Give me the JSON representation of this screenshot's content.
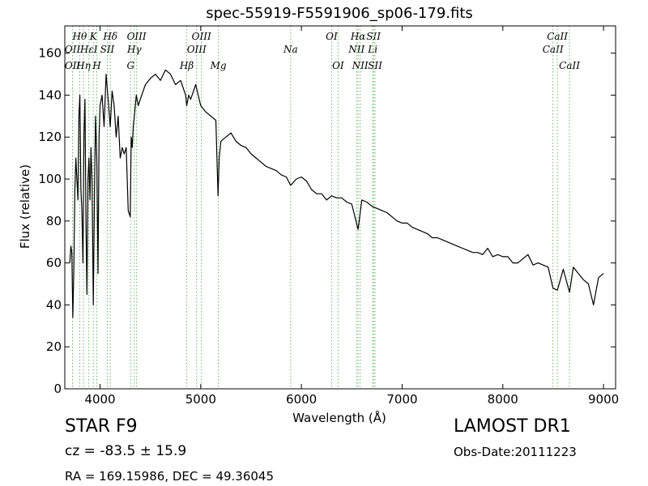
{
  "chart_data": {
    "type": "line",
    "title": "spec-55919-F5591906_sp06-179.fits",
    "xlabel": "Wavelength (Å)",
    "ylabel": "Flux (relative)",
    "xlim": [
      3650,
      9120
    ],
    "ylim": [
      0,
      173
    ],
    "x_ticks": [
      4000,
      5000,
      6000,
      7000,
      8000,
      9000
    ],
    "y_ticks": [
      0,
      20,
      40,
      60,
      80,
      100,
      120,
      140,
      160
    ],
    "grid": false,
    "line_color": "#000000",
    "marker_color": "#6ab86a",
    "spectrum": {
      "x": [
        3700,
        3710,
        3720,
        3730,
        3740,
        3750,
        3760,
        3770,
        3780,
        3790,
        3800,
        3810,
        3820,
        3830,
        3840,
        3850,
        3860,
        3870,
        3880,
        3890,
        3900,
        3910,
        3920,
        3933,
        3945,
        3955,
        3968,
        3980,
        3990,
        4000,
        4020,
        4040,
        4060,
        4080,
        4101,
        4120,
        4140,
        4160,
        4180,
        4200,
        4220,
        4240,
        4260,
        4280,
        4300,
        4310,
        4320,
        4330,
        4340,
        4360,
        4380,
        4400,
        4450,
        4500,
        4550,
        4600,
        4650,
        4700,
        4750,
        4800,
        4850,
        4861,
        4880,
        4900,
        4950,
        5000,
        5050,
        5100,
        5150,
        5172,
        5183,
        5200,
        5250,
        5300,
        5350,
        5400,
        5450,
        5500,
        5550,
        5600,
        5650,
        5700,
        5750,
        5800,
        5850,
        5893,
        5950,
        6000,
        6050,
        6100,
        6150,
        6200,
        6250,
        6300,
        6350,
        6400,
        6450,
        6500,
        6563,
        6600,
        6650,
        6700,
        6750,
        6800,
        6850,
        6900,
        6950,
        7000,
        7050,
        7100,
        7150,
        7200,
        7250,
        7300,
        7350,
        7400,
        7450,
        7500,
        7550,
        7600,
        7650,
        7700,
        7750,
        7800,
        7850,
        7900,
        7950,
        8000,
        8050,
        8100,
        8150,
        8200,
        8250,
        8300,
        8350,
        8400,
        8450,
        8498,
        8542,
        8600,
        8662,
        8700,
        8750,
        8800,
        8850,
        8900,
        8950,
        9000
      ],
      "y": [
        60,
        68,
        65,
        34,
        58,
        95,
        110,
        100,
        90,
        130,
        140,
        95,
        85,
        60,
        120,
        138,
        80,
        45,
        100,
        110,
        90,
        115,
        100,
        40,
        95,
        130,
        110,
        55,
        120,
        135,
        140,
        125,
        150,
        138,
        125,
        142,
        135,
        120,
        130,
        110,
        115,
        112,
        115,
        85,
        82,
        120,
        115,
        125,
        130,
        140,
        135,
        138,
        145,
        148,
        150,
        147,
        152,
        150,
        145,
        147,
        140,
        135,
        140,
        138,
        145,
        135,
        132,
        130,
        128,
        92,
        110,
        118,
        120,
        122,
        118,
        116,
        115,
        112,
        110,
        108,
        106,
        105,
        104,
        102,
        101,
        97,
        100,
        101,
        99,
        95,
        93,
        93,
        90,
        92,
        91,
        91,
        89,
        88,
        76,
        90,
        89,
        87,
        86,
        85,
        84,
        82,
        80,
        79,
        79,
        77,
        76,
        75,
        74,
        72,
        72,
        71,
        70,
        69,
        68,
        67,
        66,
        65,
        65,
        64,
        67,
        63,
        64,
        63,
        63,
        60,
        60,
        62,
        64,
        59,
        60,
        59,
        58,
        48,
        47,
        57,
        46,
        58,
        55,
        52,
        50,
        40,
        53,
        55
      ]
    },
    "spectral_lines": [
      {
        "label": "OII",
        "x": 3727,
        "row": 1
      },
      {
        "label": "OII",
        "x": 3727,
        "row": 2
      },
      {
        "label": "Hθ",
        "x": 3798,
        "row": 0
      },
      {
        "label": "Hη",
        "x": 3835,
        "row": 2
      },
      {
        "label": "HεI",
        "x": 3889,
        "row": 1
      },
      {
        "label": "K",
        "x": 3933,
        "row": 0
      },
      {
        "label": "H",
        "x": 3968,
        "row": 2
      },
      {
        "label": "SII",
        "x": 4072,
        "row": 1
      },
      {
        "label": "Hδ",
        "x": 4102,
        "row": 0
      },
      {
        "label": "G",
        "x": 4304,
        "row": 2
      },
      {
        "label": "Hγ",
        "x": 4340,
        "row": 1
      },
      {
        "label": "OIII",
        "x": 4363,
        "row": 0
      },
      {
        "label": "Hβ",
        "x": 4861,
        "row": 2
      },
      {
        "label": "OIII",
        "x": 4959,
        "row": 1
      },
      {
        "label": "OIII",
        "x": 5007,
        "row": 0
      },
      {
        "label": "Mg",
        "x": 5175,
        "row": 2
      },
      {
        "label": "Na",
        "x": 5893,
        "row": 1
      },
      {
        "label": "OI",
        "x": 6300,
        "row": 0
      },
      {
        "label": "OI",
        "x": 6364,
        "row": 2
      },
      {
        "label": "NII",
        "x": 6548,
        "row": 1
      },
      {
        "label": "NII",
        "x": 6583,
        "row": 2
      },
      {
        "label": "Hα",
        "x": 6563,
        "row": 0
      },
      {
        "label": "Li",
        "x": 6708,
        "row": 1
      },
      {
        "label": "SII",
        "x": 6716,
        "row": 0
      },
      {
        "label": "SII",
        "x": 6731,
        "row": 2
      },
      {
        "label": "CaII",
        "x": 8498,
        "row": 1
      },
      {
        "label": "CaII",
        "x": 8542,
        "row": 0
      },
      {
        "label": "CaII",
        "x": 8662,
        "row": 2
      }
    ]
  },
  "info": {
    "class": "STAR   F9",
    "survey": "LAMOST DR1",
    "cz": "cz = -83.5 ± 15.9",
    "obs_date": "Obs-Date:20111223",
    "coords": "RA = 169.15986, DEC = 49.36045"
  }
}
